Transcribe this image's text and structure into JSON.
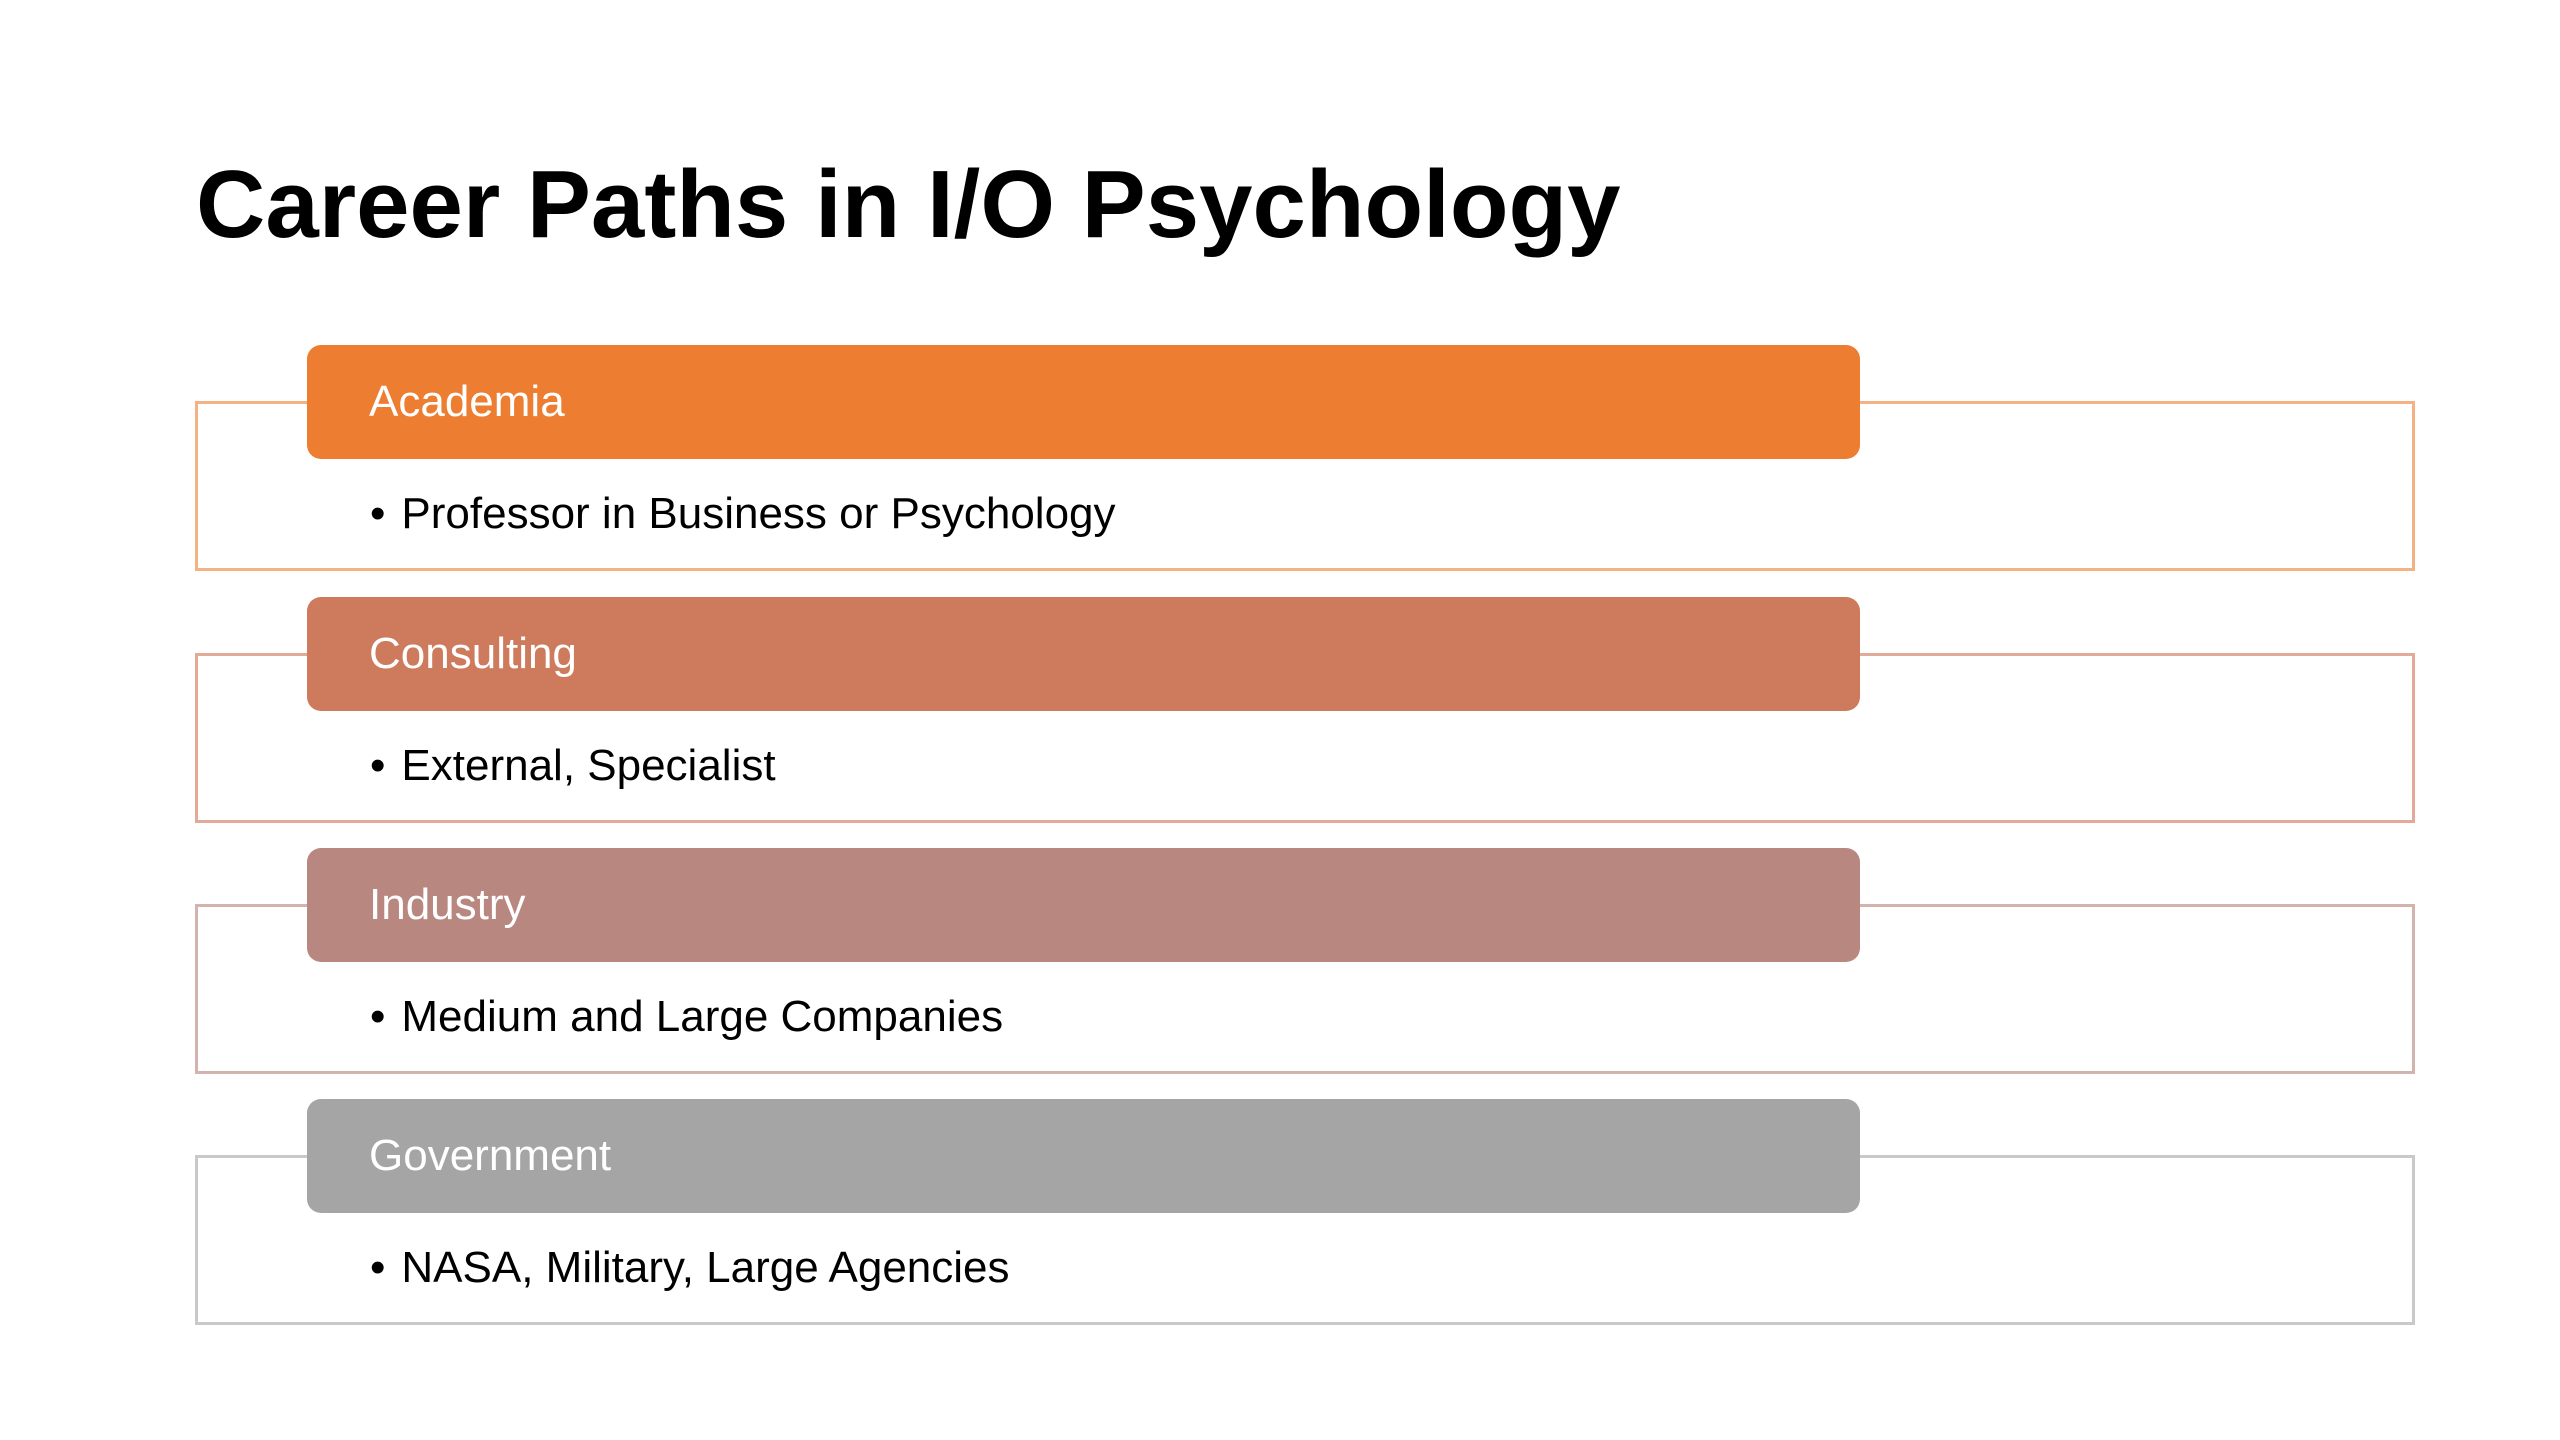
{
  "title": "Career Paths in I/O Psychology",
  "groups": [
    {
      "header": "Academia",
      "bullet": "Professor in Business or Psychology",
      "header_color": "#ED7D31",
      "border_color": "#F4B183"
    },
    {
      "header": "Consulting",
      "bullet": "External, Specialist",
      "header_color": "#CE7A5C",
      "border_color": "#E3A999"
    },
    {
      "header": "Industry",
      "bullet": "Medium and Large Companies",
      "header_color": "#B88880",
      "border_color": "#D4B2AE"
    },
    {
      "header": "Government",
      "bullet": "NASA, Military, Large Agencies",
      "header_color": "#A5A5A5",
      "border_color": "#C9C9C9"
    }
  ],
  "bullet_char": "•"
}
